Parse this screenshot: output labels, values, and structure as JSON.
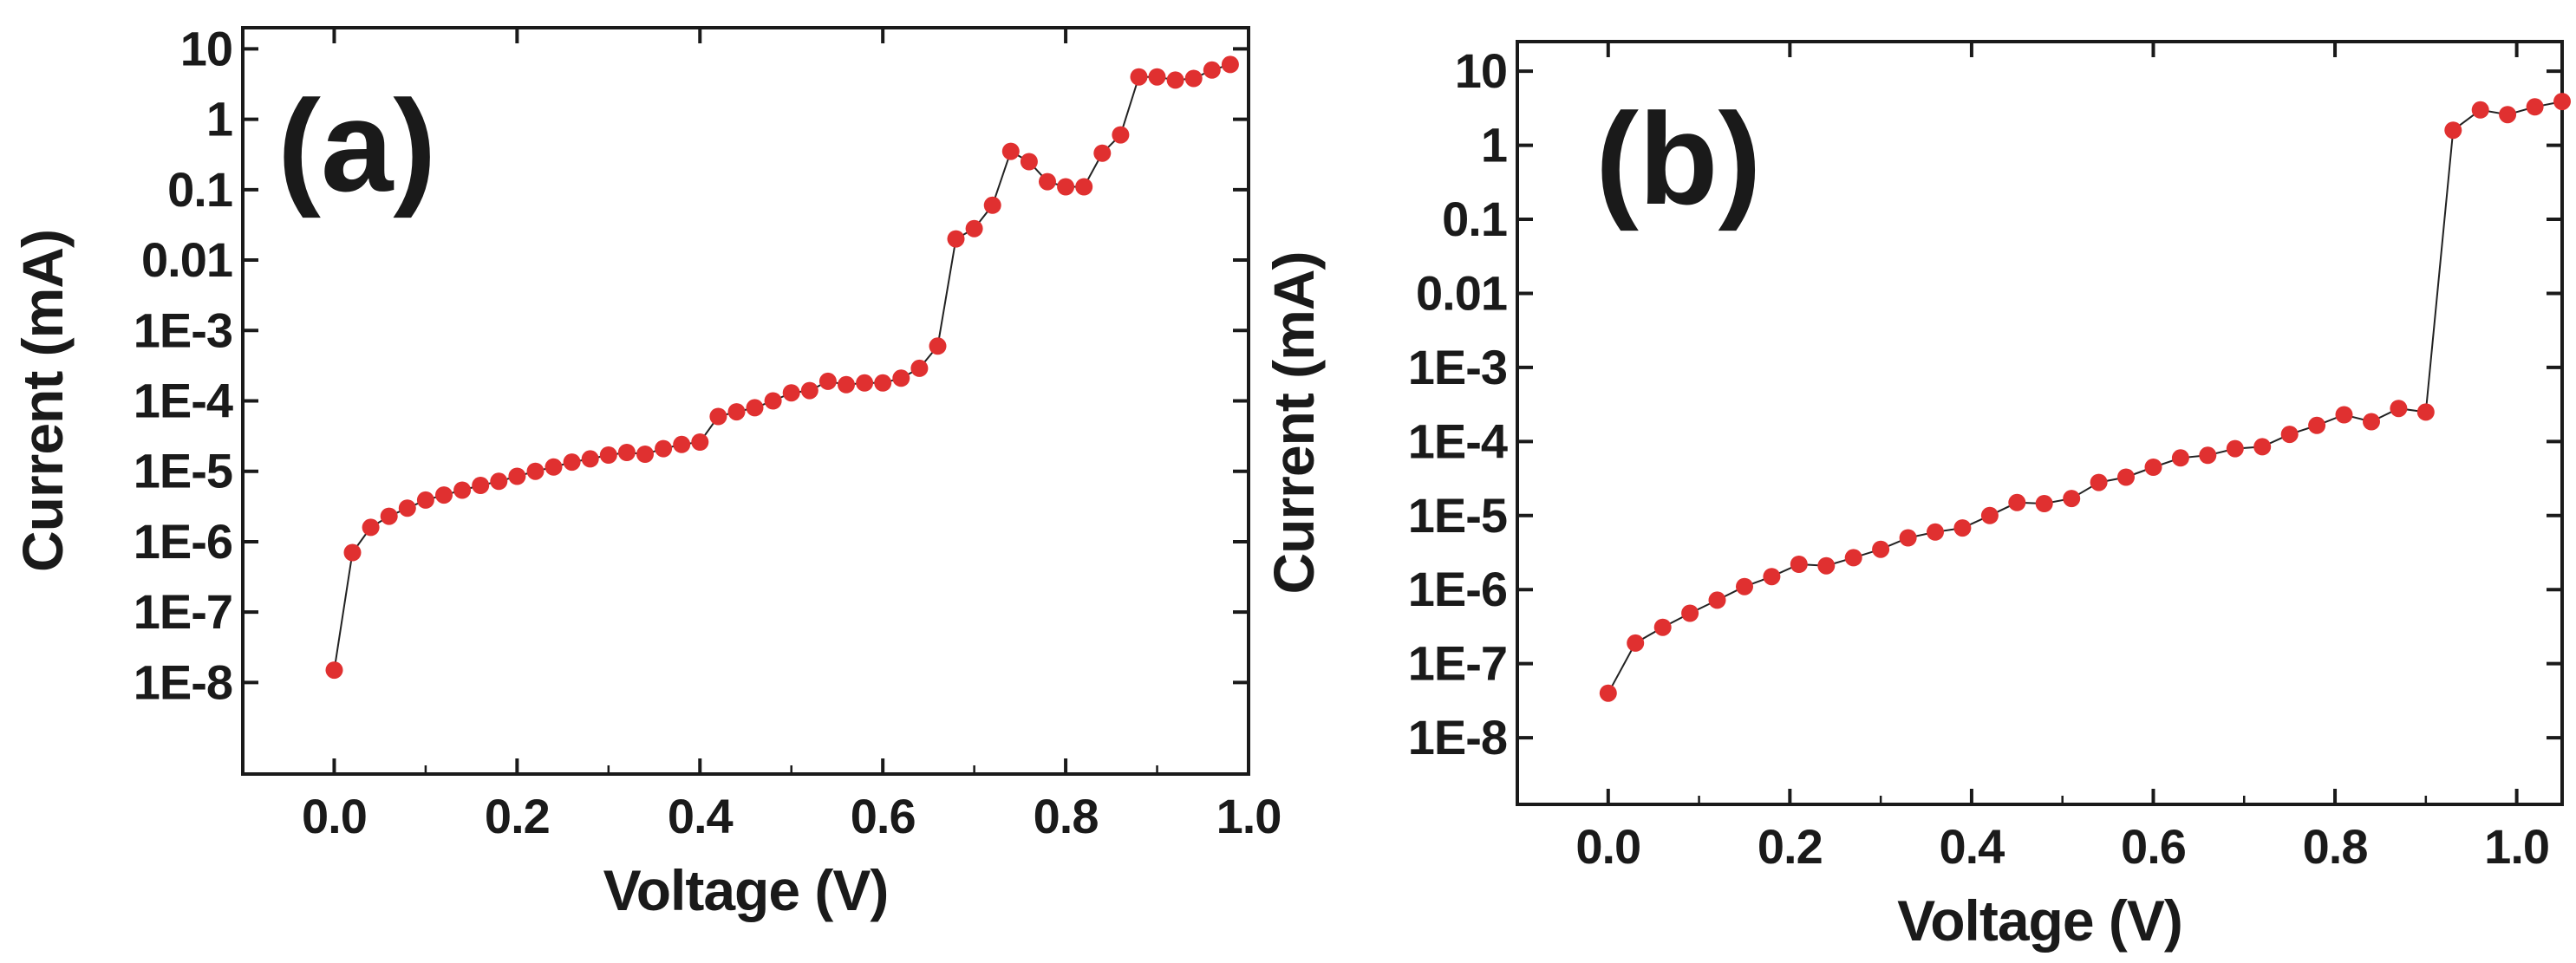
{
  "colors": {
    "marker": "#e03030",
    "line": "#222222",
    "axis": "#1a1a1a"
  },
  "chart_data": [
    {
      "type": "scatter",
      "panel_label": "(a)",
      "xlabel": "Voltage (V)",
      "ylabel": "Current (mA)",
      "xlim": [
        -0.1,
        1.0
      ],
      "ylim_log10": [
        -9.3,
        1.3
      ],
      "x_ticks": [
        0.0,
        0.2,
        0.4,
        0.6,
        0.8,
        1.0
      ],
      "x_tick_labels": [
        "0.0",
        "0.2",
        "0.4",
        "0.6",
        "0.8",
        "1.0"
      ],
      "y_ticks_log10": [
        -8,
        -7,
        -6,
        -5,
        -4,
        -3,
        -2,
        -1,
        0,
        1
      ],
      "y_tick_labels": [
        "1E-8",
        "1E-7",
        "1E-6",
        "1E-5",
        "1E-4",
        "1E-3",
        "0.01",
        "0.1",
        "1",
        "10"
      ],
      "x": [
        0.0,
        0.02,
        0.04,
        0.06,
        0.08,
        0.1,
        0.12,
        0.14,
        0.16,
        0.18,
        0.2,
        0.22,
        0.24,
        0.26,
        0.28,
        0.3,
        0.32,
        0.34,
        0.36,
        0.38,
        0.4,
        0.42,
        0.44,
        0.46,
        0.48,
        0.5,
        0.52,
        0.54,
        0.56,
        0.58,
        0.6,
        0.62,
        0.64,
        0.66,
        0.68,
        0.7,
        0.72,
        0.74,
        0.76,
        0.78,
        0.8,
        0.82,
        0.84,
        0.86,
        0.88,
        0.9,
        0.92,
        0.94,
        0.96,
        0.98
      ],
      "y": [
        1.5e-08,
        7e-07,
        1.6e-06,
        2.3e-06,
        3e-06,
        3.9e-06,
        4.6e-06,
        5.4e-06,
        6.3e-06,
        7.2e-06,
        8.5e-06,
        1e-05,
        1.15e-05,
        1.35e-05,
        1.5e-05,
        1.7e-05,
        1.85e-05,
        1.75e-05,
        2.1e-05,
        2.4e-05,
        2.6e-05,
        6e-05,
        7e-05,
        8e-05,
        0.0001,
        0.00013,
        0.00014,
        0.00019,
        0.00017,
        0.00018,
        0.00018,
        0.00021,
        0.00029,
        0.0006,
        0.02,
        0.028,
        0.06,
        0.35,
        0.25,
        0.13,
        0.11,
        0.11,
        0.33,
        0.6,
        4.0,
        4.0,
        3.6,
        3.8,
        5.0,
        6.0
      ]
    },
    {
      "type": "scatter",
      "panel_label": "(b)",
      "xlabel": "Voltage (V)",
      "ylabel": "Current (mA)",
      "xlim": [
        -0.1,
        1.05
      ],
      "ylim_log10": [
        -8.9,
        1.4
      ],
      "x_ticks": [
        0.0,
        0.2,
        0.4,
        0.6,
        0.8,
        1.0
      ],
      "x_tick_labels": [
        "0.0",
        "0.2",
        "0.4",
        "0.6",
        "0.8",
        "1.0"
      ],
      "y_ticks_log10": [
        -8,
        -7,
        -6,
        -5,
        -4,
        -3,
        -2,
        -1,
        0,
        1
      ],
      "y_tick_labels": [
        "1E-8",
        "1E-7",
        "1E-6",
        "1E-5",
        "1E-4",
        "1E-3",
        "0.01",
        "0.1",
        "1",
        "10"
      ],
      "x": [
        0.0,
        0.03,
        0.06,
        0.09,
        0.12,
        0.15,
        0.18,
        0.21,
        0.24,
        0.27,
        0.3,
        0.33,
        0.36,
        0.39,
        0.42,
        0.45,
        0.48,
        0.51,
        0.54,
        0.57,
        0.6,
        0.63,
        0.66,
        0.69,
        0.72,
        0.75,
        0.78,
        0.81,
        0.84,
        0.87,
        0.9,
        0.93,
        0.96,
        0.99,
        1.02,
        1.05
      ],
      "y": [
        4e-08,
        1.9e-07,
        3.1e-07,
        4.8e-07,
        7.2e-07,
        1.1e-06,
        1.5e-06,
        2.2e-06,
        2.1e-06,
        2.7e-06,
        3.5e-06,
        5e-06,
        6e-06,
        6.8e-06,
        1e-05,
        1.5e-05,
        1.45e-05,
        1.7e-05,
        2.8e-05,
        3.3e-05,
        4.5e-05,
        6e-05,
        6.5e-05,
        8e-05,
        8.5e-05,
        0.000125,
        0.000165,
        0.00023,
        0.000185,
        0.00028,
        0.00025,
        1.6,
        3.0,
        2.6,
        3.3,
        3.9
      ]
    }
  ]
}
